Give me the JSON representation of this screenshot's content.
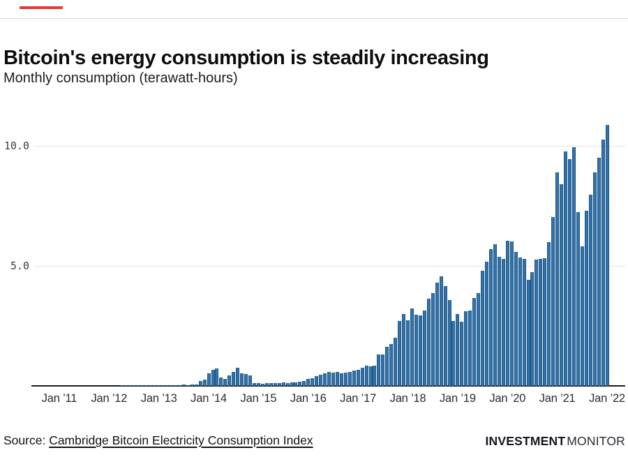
{
  "header": {
    "title": "Bitcoin's energy consumption is steadily increasing",
    "subtitle": "Monthly consumption (terawatt-hours)"
  },
  "colors": {
    "accent_red": "#e03c31",
    "bar_fill": "#3173ad",
    "bar_edge": "#205580",
    "gridline": "#e3e3e3",
    "axis": "#1a1a1a"
  },
  "chart_data": {
    "type": "bar",
    "title": "Bitcoin's energy consumption is steadily increasing",
    "subtitle": "Monthly consumption (terawatt-hours)",
    "ylabel": "terawatt-hours",
    "xlabel": "",
    "x_frequency": "monthly",
    "x_start": "2011-01",
    "x_end": "2022-01",
    "x_tick_labels": [
      "Jan ’11",
      "Jan ’12",
      "Jan ’13",
      "Jan ’14",
      "Jan ’15",
      "Jan ’16",
      "Jan ’17",
      "Jan ’18",
      "Jan ’19",
      "Jan ’20",
      "Jan ’21",
      "Jan ’22"
    ],
    "y_ticks": [
      5.0,
      10.0
    ],
    "y_tick_labels": [
      "5.0",
      "10.0"
    ],
    "ylim": [
      0,
      11.6
    ],
    "grid": "horizontal",
    "legend": "none",
    "series": [
      {
        "name": "Monthly consumption (TWh)",
        "values": [
          0.01,
          0.01,
          0.01,
          0.01,
          0.01,
          0.01,
          0.01,
          0.01,
          0.01,
          0.01,
          0.01,
          0.01,
          0.01,
          0.01,
          0.01,
          0.02,
          0.02,
          0.02,
          0.02,
          0.02,
          0.02,
          0.02,
          0.02,
          0.02,
          0.02,
          0.02,
          0.03,
          0.03,
          0.03,
          0.04,
          0.06,
          0.04,
          0.05,
          0.05,
          0.19,
          0.27,
          0.53,
          0.66,
          0.72,
          0.34,
          0.3,
          0.43,
          0.58,
          0.77,
          0.53,
          0.48,
          0.43,
          0.12,
          0.11,
          0.1,
          0.11,
          0.12,
          0.12,
          0.13,
          0.14,
          0.13,
          0.14,
          0.15,
          0.17,
          0.2,
          0.28,
          0.33,
          0.4,
          0.46,
          0.52,
          0.57,
          0.55,
          0.58,
          0.52,
          0.55,
          0.58,
          0.63,
          0.68,
          0.75,
          0.85,
          0.8,
          0.84,
          1.31,
          1.31,
          1.63,
          1.73,
          2.02,
          2.7,
          2.99,
          2.72,
          3.23,
          2.97,
          2.94,
          3.15,
          3.63,
          3.86,
          4.3,
          4.55,
          4.17,
          3.57,
          2.7,
          2.99,
          2.68,
          3.11,
          3.13,
          3.66,
          3.88,
          4.8,
          5.16,
          5.71,
          5.91,
          5.38,
          5.29,
          6.06,
          6.01,
          5.59,
          5.35,
          5.28,
          4.41,
          4.75,
          5.26,
          5.3,
          5.32,
          6.0,
          7.04,
          8.9,
          8.4,
          9.77,
          9.44,
          9.94,
          7.24,
          5.81,
          7.31,
          7.96,
          8.9,
          9.51,
          10.25,
          10.86
        ]
      }
    ]
  },
  "footer": {
    "source_prefix": "Source: ",
    "source_link": "Cambridge Bitcoin Electricity Consumption Index",
    "brand_bold": "INVESTMENT",
    "brand_light": "MONITOR"
  }
}
